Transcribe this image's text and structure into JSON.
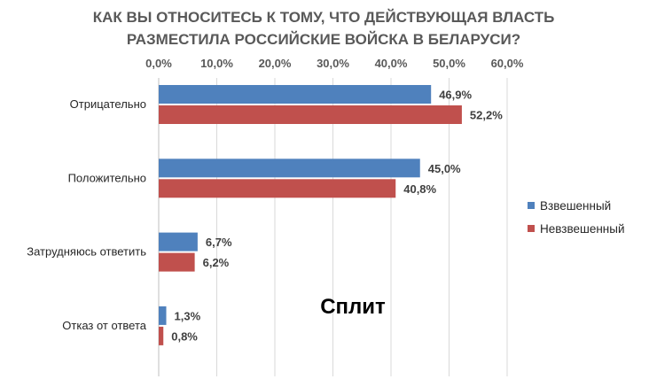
{
  "chart_data": {
    "type": "bar",
    "orientation": "horizontal",
    "title": "КАК ВЫ ОТНОСИТЕСЬ К ТОМУ, ЧТО ДЕЙСТВУЮЩАЯ ВЛАСТЬ РАЗМЕСТИЛА РОССИЙСКИЕ ВОЙСКА В БЕЛАРУСИ?",
    "title_lines": [
      "КАК ВЫ ОТНОСИТЕСЬ К ТОМУ, ЧТО ДЕЙСТВУЮЩАЯ ВЛАСТЬ",
      "РАЗМЕСТИЛА РОССИЙСКИЕ ВОЙСКА В БЕЛАРУСИ?"
    ],
    "categories": [
      "Отрицательно",
      "Положительно",
      "Затрудняюсь ответить",
      "Отказ от ответа"
    ],
    "series": [
      {
        "name": "Взвешенный",
        "color": "#4f81bd",
        "values": [
          46.9,
          45.0,
          6.7,
          1.3
        ],
        "labels": [
          "46,9%",
          "45,0%",
          "6,7%",
          "1,3%"
        ]
      },
      {
        "name": "Невзвешенный",
        "color": "#c0504d",
        "values": [
          52.2,
          40.8,
          6.2,
          0.8
        ],
        "labels": [
          "52,2%",
          "40,8%",
          "6,2%",
          "0,8%"
        ]
      }
    ],
    "xlim": [
      0,
      60
    ],
    "ticks": [
      "0,0%",
      "10,0%",
      "20,0%",
      "30,0%",
      "40,0%",
      "50,0%",
      "60,0%"
    ],
    "axis_position": "top",
    "grid": true,
    "legend_position": "right",
    "annotation": "Сплит"
  }
}
